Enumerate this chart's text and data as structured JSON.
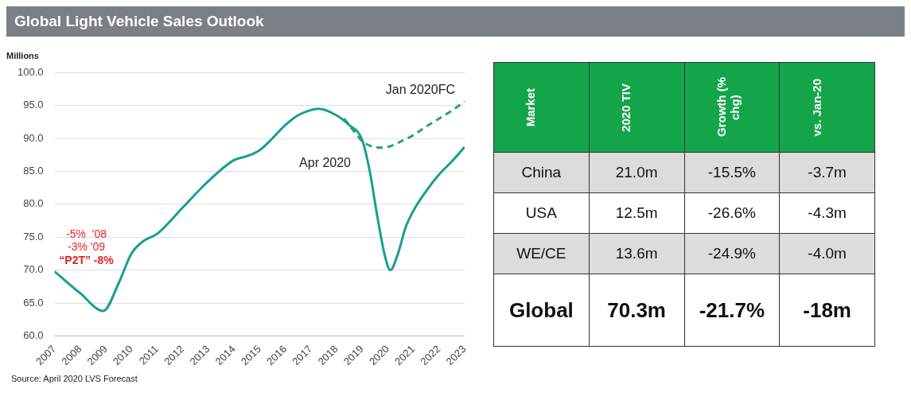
{
  "chart_data": [
    {
      "type": "line",
      "title": "Global Light Vehicle Sales Outlook",
      "ylabel": "Millions",
      "xlim": [
        2007,
        2023
      ],
      "xticks": [
        2007,
        2008,
        2009,
        2010,
        2011,
        2012,
        2013,
        2014,
        2015,
        2016,
        2017,
        2018,
        2019,
        2020,
        2021,
        2022,
        2023
      ],
      "ylim": [
        60,
        100
      ],
      "yticks": [
        {
          "value": 60,
          "label": "60.0"
        },
        {
          "value": 65,
          "label": "65.0"
        },
        {
          "value": 70,
          "label": "70.0"
        },
        {
          "value": 75,
          "label": "75.0"
        },
        {
          "value": 80,
          "label": "80.0"
        },
        {
          "value": 85,
          "label": "85.0"
        },
        {
          "value": 90,
          "label": "90.0"
        },
        {
          "value": 95,
          "label": "95.0"
        },
        {
          "value": 100,
          "label": "100.0"
        }
      ],
      "grid": "y",
      "marker": "none",
      "series": [
        {
          "name": "Apr 2020",
          "color": "#16a08c",
          "line_style": "solid",
          "x": [
            2007,
            2008,
            2008.9,
            2009.5,
            2010,
            2010.5,
            2011,
            2012,
            2013,
            2014,
            2014.5,
            2015,
            2015.5,
            2016,
            2016.5,
            2017,
            2017.3,
            2018,
            2018.5,
            2019,
            2019.3,
            2019.6,
            2019.9,
            2020.1,
            2020.4,
            2020.7,
            2021,
            2021.5,
            2022,
            2022.5,
            2023
          ],
          "values": [
            69.8,
            66.5,
            63.8,
            68,
            72.5,
            74.5,
            75.5,
            79.5,
            83.5,
            86.7,
            87.3,
            88.2,
            90,
            92,
            93.5,
            94.3,
            94.5,
            93.5,
            92,
            89.8,
            85,
            78,
            72,
            70,
            72.5,
            76.5,
            79,
            82,
            84.5,
            86.5,
            88.7
          ]
        },
        {
          "name": "Jan 2020FC",
          "color": "#26a85a",
          "line_style": "dashed",
          "x": [
            2018.3,
            2018.7,
            2019,
            2019.3,
            2019.7,
            2020,
            2020.5,
            2021,
            2021.5,
            2022,
            2022.5,
            2023
          ],
          "values": [
            93,
            91,
            89.6,
            88.9,
            88.6,
            88.7,
            89.5,
            90.5,
            91.8,
            93,
            94.2,
            95.6
          ]
        }
      ],
      "annotations": [
        "-5%  '08",
        "-3% '09",
        "“P2T” -8%",
        "Source: April 2020 LVS Forecast"
      ]
    },
    {
      "type": "other",
      "categories": [
        "Market",
        "2020 TIV",
        "Growth (% chg)",
        "vs. Jan-20"
      ],
      "cell_labels": [
        [
          "China",
          "21.0m",
          "-15.5%",
          "-3.7m"
        ],
        [
          "USA",
          "12.5m",
          "-26.6%",
          "-4.3m"
        ],
        [
          "WE/CE",
          "13.6m",
          "-24.9%",
          "-4.0m"
        ],
        [
          "Global",
          "70.3m",
          "-21.7%",
          "-18m"
        ]
      ]
    }
  ]
}
